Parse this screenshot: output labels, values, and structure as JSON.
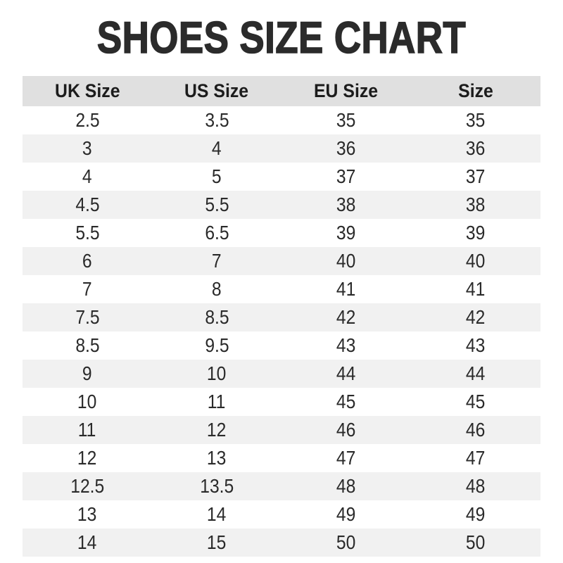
{
  "title": "SHOES SIZE CHART",
  "colors": {
    "background": "#ffffff",
    "title_text": "#2b2b2b",
    "header_row_bg": "#e0e0e0",
    "alt_row_bg": "#f1f1f1",
    "body_text": "#2a2a2a"
  },
  "chart_data": {
    "type": "table",
    "title": "SHOES SIZE CHART",
    "columns": [
      "UK Size",
      "US Size",
      "EU Size",
      "Size"
    ],
    "rows": [
      [
        "2.5",
        "3.5",
        "35",
        "35"
      ],
      [
        "3",
        "4",
        "36",
        "36"
      ],
      [
        "4",
        "5",
        "37",
        "37"
      ],
      [
        "4.5",
        "5.5",
        "38",
        "38"
      ],
      [
        "5.5",
        "6.5",
        "39",
        "39"
      ],
      [
        "6",
        "7",
        "40",
        "40"
      ],
      [
        "7",
        "8",
        "41",
        "41"
      ],
      [
        "7.5",
        "8.5",
        "42",
        "42"
      ],
      [
        "8.5",
        "9.5",
        "43",
        "43"
      ],
      [
        "9",
        "10",
        "44",
        "44"
      ],
      [
        "10",
        "11",
        "45",
        "45"
      ],
      [
        "11",
        "12",
        "46",
        "46"
      ],
      [
        "12",
        "13",
        "47",
        "47"
      ],
      [
        "12.5",
        "13.5",
        "48",
        "48"
      ],
      [
        "13",
        "14",
        "49",
        "49"
      ],
      [
        "14",
        "15",
        "50",
        "50"
      ]
    ],
    "layout": {
      "striped": true,
      "first_data_row_background": "white",
      "alignment": "center"
    }
  }
}
